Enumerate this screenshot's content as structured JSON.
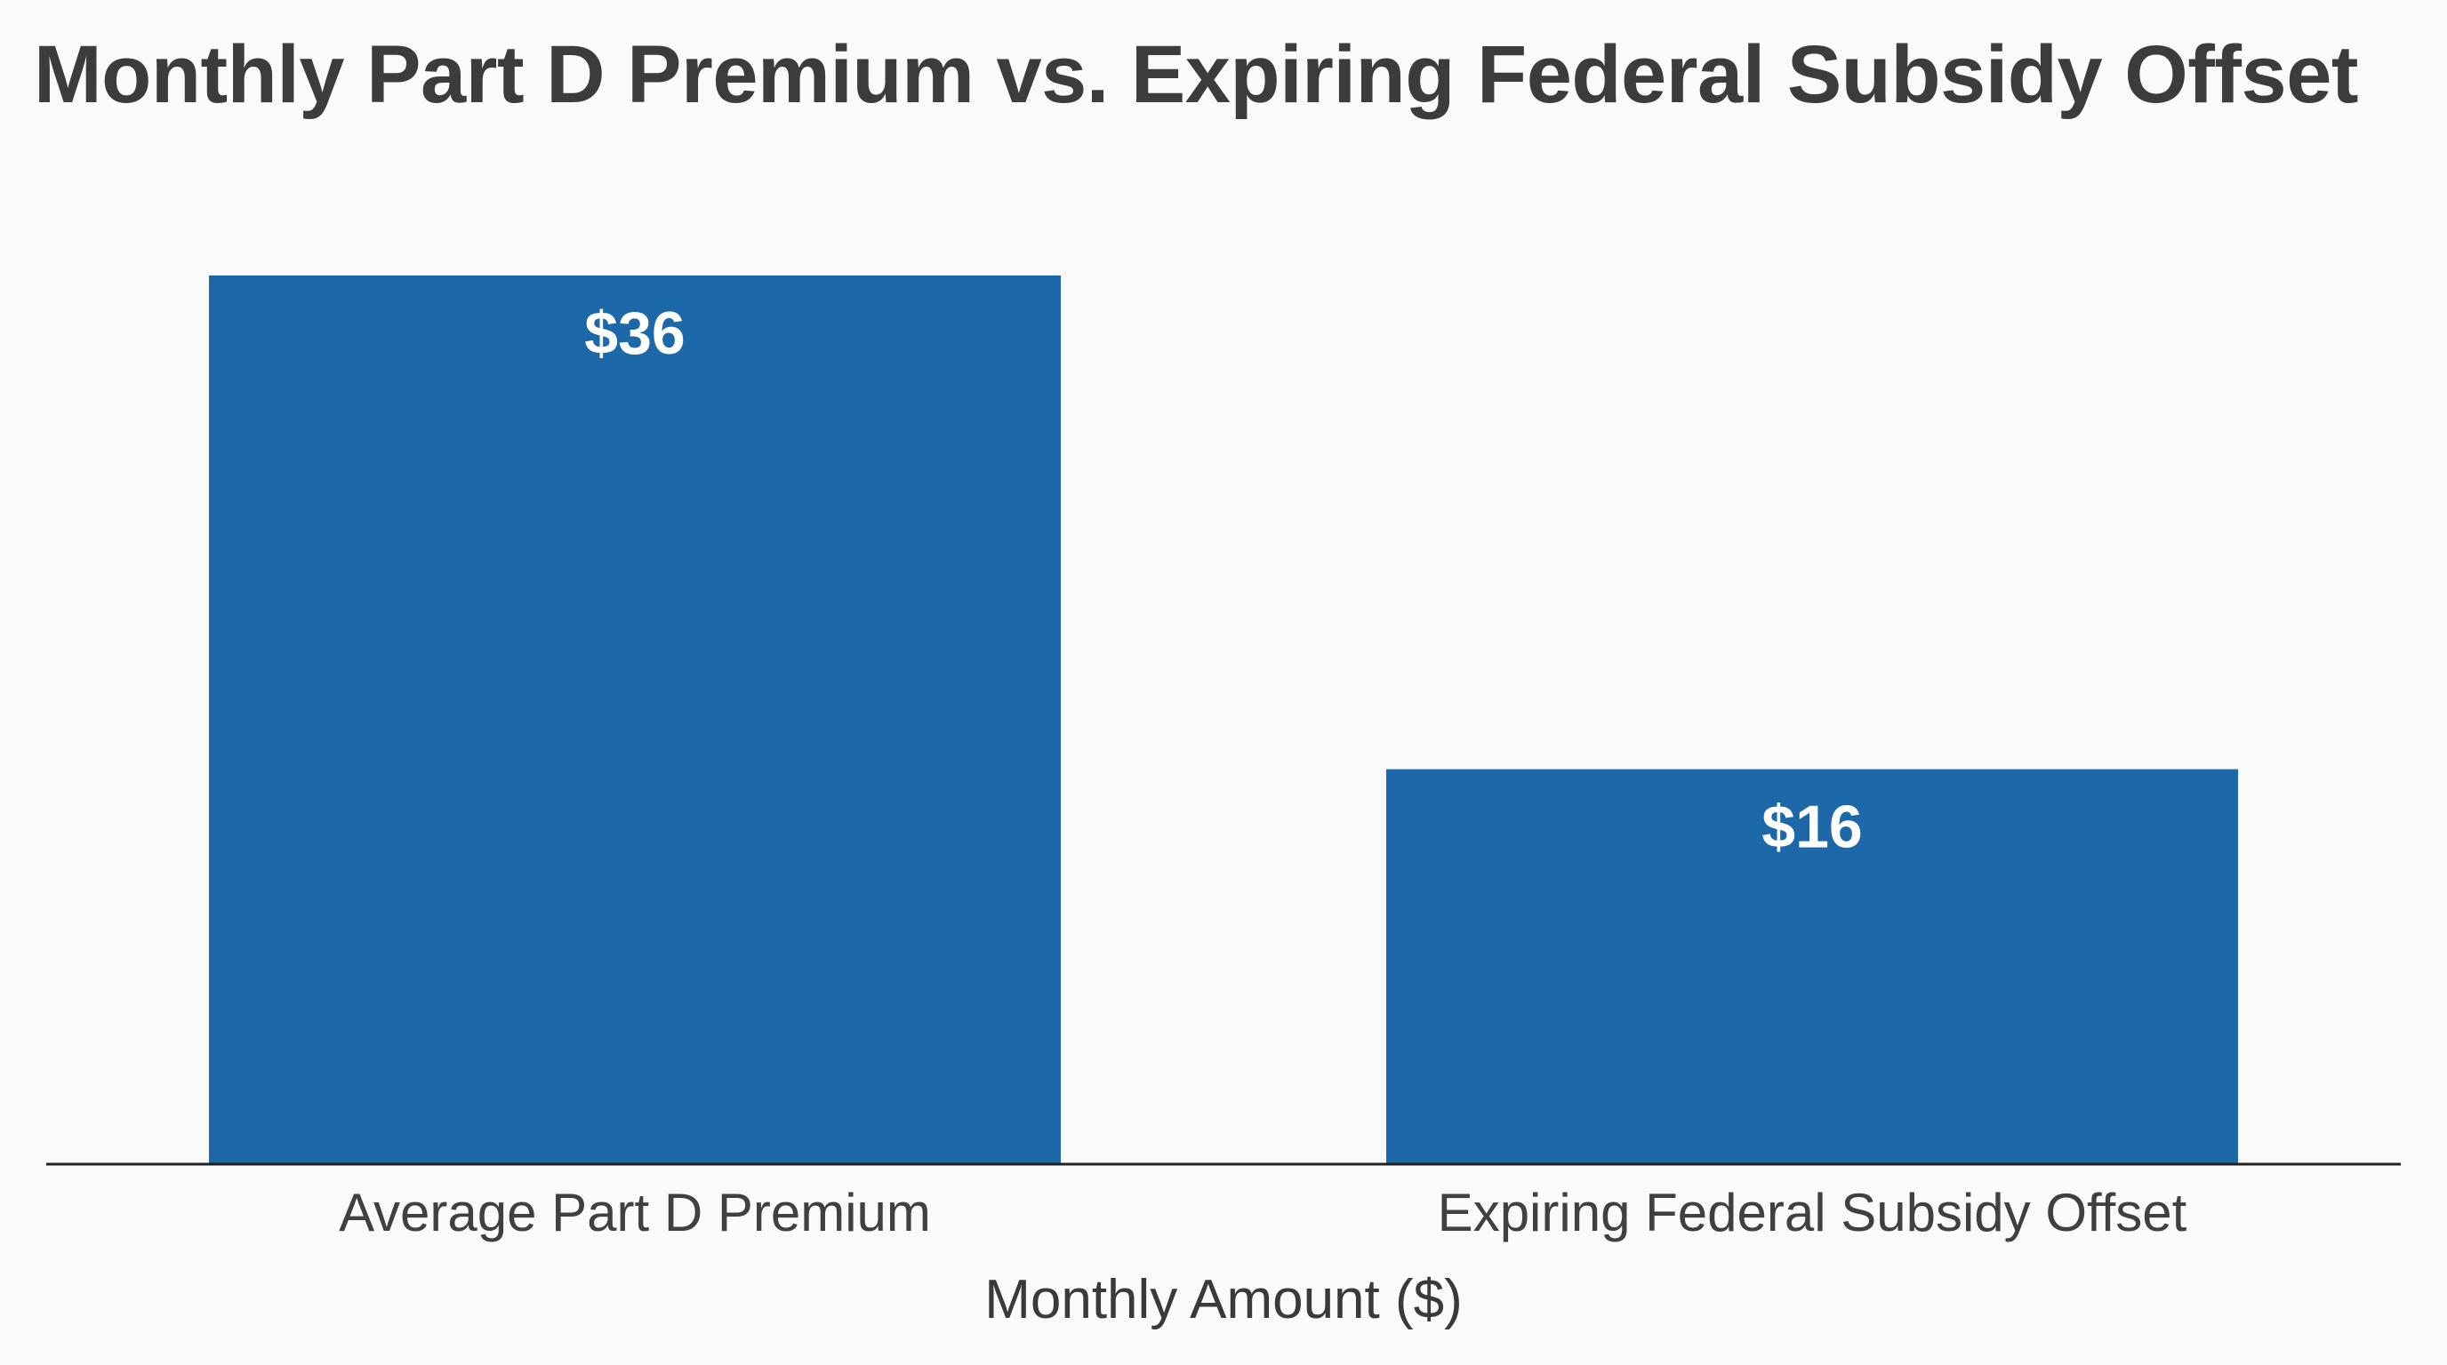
{
  "chart_data": {
    "type": "bar",
    "title": "Monthly Part D Premium vs. Expiring Federal Subsidy Offset",
    "categories": [
      "Average Part D Premium",
      "Expiring Federal Subsidy Offset"
    ],
    "values": [
      36,
      16
    ],
    "value_labels": [
      "$36",
      "$16"
    ],
    "xlabel": "Monthly Amount ($)",
    "ylabel": "",
    "ylim": [
      0,
      36
    ],
    "grid": false,
    "legend": "none",
    "bar_color": "#1c68a8",
    "axis_color": "#222222"
  }
}
